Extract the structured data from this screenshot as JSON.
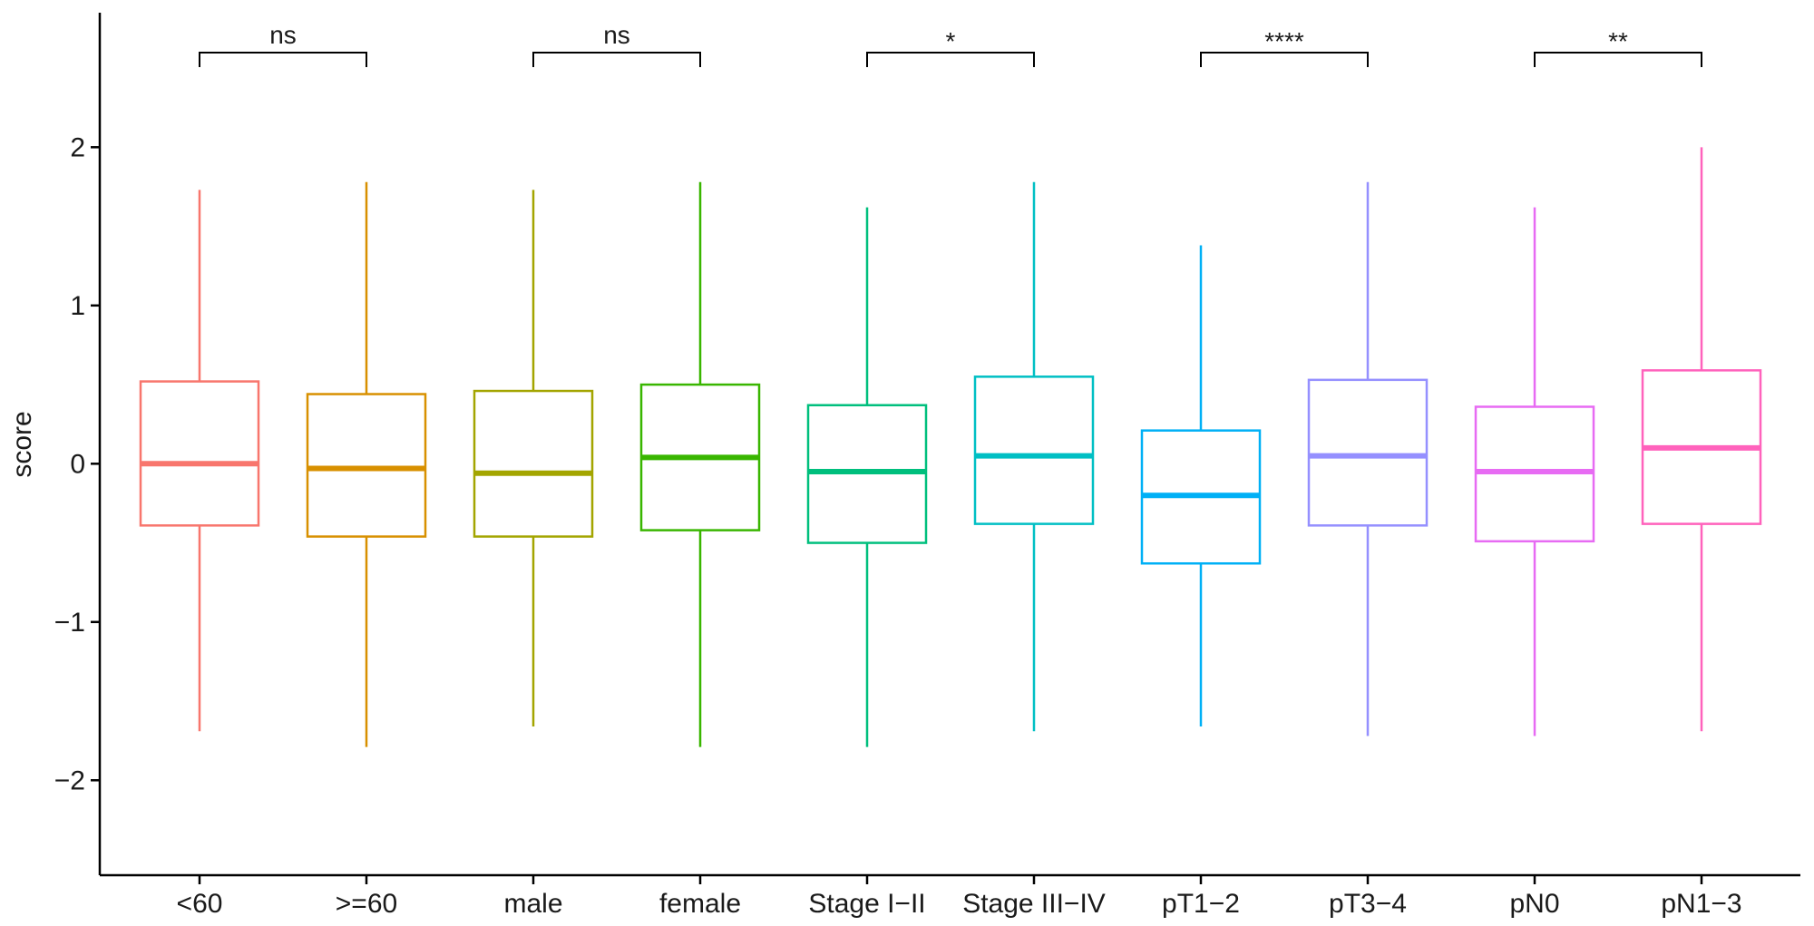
{
  "chart_data": {
    "type": "box",
    "title": "",
    "xlabel": "",
    "ylabel": "score",
    "ylim": [
      -2.6,
      2.85
    ],
    "yticks": [
      2,
      1,
      0,
      -1,
      -2
    ],
    "ytick_labels": [
      "2",
      "1",
      "0",
      "−1",
      "−2"
    ],
    "grid": false,
    "legend": "none",
    "groups": [
      {
        "label": "<60",
        "color": "#F8766D",
        "whisker_low": -1.69,
        "q1": -0.39,
        "median": 0.0,
        "q3": 0.52,
        "whisker_high": 1.73
      },
      {
        "label": ">=60",
        "color": "#D89000",
        "whisker_low": -1.79,
        "q1": -0.46,
        "median": -0.03,
        "q3": 0.44,
        "whisker_high": 1.78
      },
      {
        "label": "male",
        "color": "#A3A500",
        "whisker_low": -1.66,
        "q1": -0.46,
        "median": -0.06,
        "q3": 0.46,
        "whisker_high": 1.73
      },
      {
        "label": "female",
        "color": "#39B600",
        "whisker_low": -1.79,
        "q1": -0.42,
        "median": 0.04,
        "q3": 0.5,
        "whisker_high": 1.78
      },
      {
        "label": "Stage I−II",
        "color": "#00BF7D",
        "whisker_low": -1.79,
        "q1": -0.5,
        "median": -0.05,
        "q3": 0.37,
        "whisker_high": 1.62
      },
      {
        "label": "Stage III−IV",
        "color": "#00BFC4",
        "whisker_low": -1.69,
        "q1": -0.38,
        "median": 0.05,
        "q3": 0.55,
        "whisker_high": 1.78
      },
      {
        "label": "pT1−2",
        "color": "#00B0F6",
        "whisker_low": -1.66,
        "q1": -0.63,
        "median": -0.2,
        "q3": 0.21,
        "whisker_high": 1.38
      },
      {
        "label": "pT3−4",
        "color": "#9590FF",
        "whisker_low": -1.72,
        "q1": -0.39,
        "median": 0.05,
        "q3": 0.53,
        "whisker_high": 1.78
      },
      {
        "label": "pN0",
        "color": "#E76BF3",
        "whisker_low": -1.72,
        "q1": -0.49,
        "median": -0.05,
        "q3": 0.36,
        "whisker_high": 1.62
      },
      {
        "label": "pN1−3",
        "color": "#FF62BC",
        "whisker_low": -1.69,
        "q1": -0.38,
        "median": 0.1,
        "q3": 0.59,
        "whisker_high": 2.0
      }
    ],
    "comparisons": [
      {
        "groups": [
          0,
          1
        ],
        "label": "ns"
      },
      {
        "groups": [
          2,
          3
        ],
        "label": "ns"
      },
      {
        "groups": [
          4,
          5
        ],
        "label": "*"
      },
      {
        "groups": [
          6,
          7
        ],
        "label": "****"
      },
      {
        "groups": [
          8,
          9
        ],
        "label": "**"
      }
    ]
  }
}
